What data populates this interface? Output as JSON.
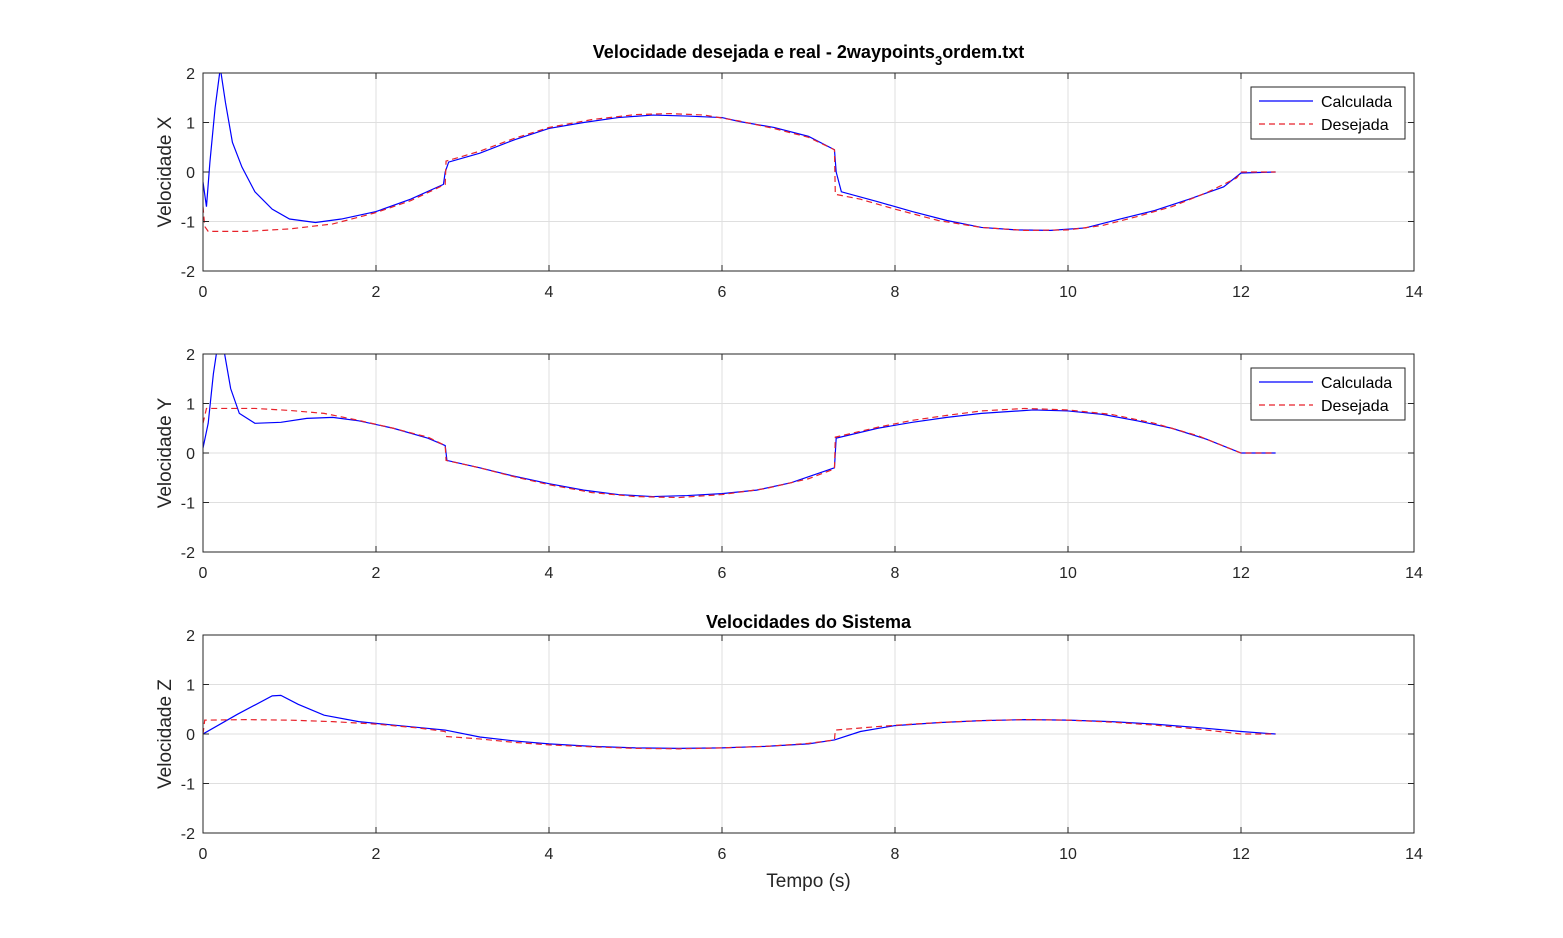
{
  "chart_data": [
    {
      "type": "line",
      "title_main": "Velocidade desejada e real - 2waypoints",
      "title_subscript": "3",
      "title_suffix": "ordem.txt",
      "ylabel": "Velocidade X",
      "xlabel": "",
      "xlim": [
        0,
        14
      ],
      "ylim": [
        -2,
        2
      ],
      "xticks": [
        "0",
        "2",
        "4",
        "6",
        "8",
        "10",
        "12",
        "14"
      ],
      "yticks": [
        "2",
        "1",
        "0",
        "-1",
        "-2"
      ],
      "grid": true,
      "legend_position": "top-right",
      "series": [
        {
          "name": "Calculada",
          "color": "#0000ff",
          "style": "solid",
          "points": [
            [
              0,
              -0.2
            ],
            [
              0.04,
              -0.7
            ],
            [
              0.08,
              0.2
            ],
            [
              0.14,
              1.3
            ],
            [
              0.2,
              2.1
            ],
            [
              0.26,
              1.4
            ],
            [
              0.34,
              0.6
            ],
            [
              0.45,
              0.1
            ],
            [
              0.6,
              -0.4
            ],
            [
              0.8,
              -0.75
            ],
            [
              1.0,
              -0.95
            ],
            [
              1.3,
              -1.02
            ],
            [
              1.6,
              -0.95
            ],
            [
              2.0,
              -0.8
            ],
            [
              2.4,
              -0.55
            ],
            [
              2.78,
              -0.25
            ],
            [
              2.8,
              0.0
            ],
            [
              2.84,
              0.2
            ],
            [
              3.2,
              0.38
            ],
            [
              3.6,
              0.65
            ],
            [
              4.0,
              0.88
            ],
            [
              4.4,
              1.0
            ],
            [
              4.8,
              1.1
            ],
            [
              5.2,
              1.15
            ],
            [
              5.6,
              1.13
            ],
            [
              6.0,
              1.1
            ],
            [
              6.2,
              1.02
            ],
            [
              6.6,
              0.9
            ],
            [
              7.0,
              0.72
            ],
            [
              7.3,
              0.45
            ],
            [
              7.32,
              0.0
            ],
            [
              7.38,
              -0.4
            ],
            [
              7.8,
              -0.6
            ],
            [
              8.2,
              -0.8
            ],
            [
              8.6,
              -0.98
            ],
            [
              9.0,
              -1.12
            ],
            [
              9.4,
              -1.17
            ],
            [
              9.8,
              -1.18
            ],
            [
              10.2,
              -1.13
            ],
            [
              10.6,
              -0.95
            ],
            [
              11.0,
              -0.78
            ],
            [
              11.4,
              -0.55
            ],
            [
              11.8,
              -0.3
            ],
            [
              12.0,
              -0.02
            ],
            [
              12.4,
              0.0
            ]
          ]
        },
        {
          "name": "Desejada",
          "color": "#e8222a",
          "style": "dashed",
          "points": [
            [
              0,
              -0.7
            ],
            [
              0.02,
              -1.1
            ],
            [
              0.06,
              -1.2
            ],
            [
              0.5,
              -1.2
            ],
            [
              1.0,
              -1.15
            ],
            [
              1.5,
              -1.05
            ],
            [
              2.0,
              -0.82
            ],
            [
              2.4,
              -0.58
            ],
            [
              2.8,
              -0.25
            ],
            [
              2.81,
              0.22
            ],
            [
              3.2,
              0.42
            ],
            [
              3.6,
              0.68
            ],
            [
              4.0,
              0.9
            ],
            [
              4.5,
              1.06
            ],
            [
              5.0,
              1.16
            ],
            [
              5.4,
              1.18
            ],
            [
              5.8,
              1.15
            ],
            [
              6.2,
              1.03
            ],
            [
              6.6,
              0.88
            ],
            [
              7.0,
              0.7
            ],
            [
              7.3,
              0.45
            ],
            [
              7.31,
              -0.45
            ],
            [
              7.6,
              -0.55
            ],
            [
              8.0,
              -0.75
            ],
            [
              8.5,
              -0.98
            ],
            [
              9.0,
              -1.12
            ],
            [
              9.5,
              -1.18
            ],
            [
              10.0,
              -1.17
            ],
            [
              10.4,
              -1.08
            ],
            [
              10.8,
              -0.9
            ],
            [
              11.2,
              -0.7
            ],
            [
              11.6,
              -0.42
            ],
            [
              11.95,
              -0.12
            ],
            [
              12.0,
              0.0
            ],
            [
              12.4,
              0.0
            ]
          ]
        }
      ]
    },
    {
      "type": "line",
      "ylabel": "Velocidade Y",
      "xlabel": "",
      "xlim": [
        0,
        14
      ],
      "ylim": [
        -2,
        2
      ],
      "xticks": [
        "0",
        "2",
        "4",
        "6",
        "8",
        "10",
        "12",
        "14"
      ],
      "yticks": [
        "2",
        "1",
        "0",
        "-1",
        "-2"
      ],
      "grid": true,
      "legend_position": "top-right",
      "series": [
        {
          "name": "Calculada",
          "color": "#0000ff",
          "style": "solid",
          "points": [
            [
              0,
              0.1
            ],
            [
              0.06,
              0.6
            ],
            [
              0.12,
              1.6
            ],
            [
              0.18,
              2.3
            ],
            [
              0.24,
              2.1
            ],
            [
              0.32,
              1.3
            ],
            [
              0.42,
              0.8
            ],
            [
              0.6,
              0.6
            ],
            [
              0.9,
              0.62
            ],
            [
              1.2,
              0.7
            ],
            [
              1.5,
              0.72
            ],
            [
              1.8,
              0.65
            ],
            [
              2.2,
              0.5
            ],
            [
              2.6,
              0.3
            ],
            [
              2.8,
              0.15
            ],
            [
              2.82,
              -0.15
            ],
            [
              3.2,
              -0.3
            ],
            [
              3.6,
              -0.47
            ],
            [
              4.0,
              -0.62
            ],
            [
              4.4,
              -0.75
            ],
            [
              4.8,
              -0.84
            ],
            [
              5.2,
              -0.88
            ],
            [
              5.6,
              -0.86
            ],
            [
              6.0,
              -0.82
            ],
            [
              6.4,
              -0.75
            ],
            [
              6.8,
              -0.6
            ],
            [
              7.3,
              -0.3
            ],
            [
              7.32,
              0.3
            ],
            [
              7.8,
              0.5
            ],
            [
              8.2,
              0.62
            ],
            [
              8.6,
              0.72
            ],
            [
              9.0,
              0.8
            ],
            [
              9.6,
              0.87
            ],
            [
              10.0,
              0.85
            ],
            [
              10.4,
              0.78
            ],
            [
              10.8,
              0.65
            ],
            [
              11.2,
              0.5
            ],
            [
              11.6,
              0.28
            ],
            [
              12.0,
              0.0
            ],
            [
              12.4,
              0.0
            ]
          ]
        },
        {
          "name": "Desejada",
          "color": "#e8222a",
          "style": "dashed",
          "points": [
            [
              0,
              0.6
            ],
            [
              0.04,
              0.9
            ],
            [
              0.6,
              0.9
            ],
            [
              1.0,
              0.86
            ],
            [
              1.4,
              0.8
            ],
            [
              1.8,
              0.66
            ],
            [
              2.2,
              0.5
            ],
            [
              2.6,
              0.32
            ],
            [
              2.8,
              0.15
            ],
            [
              2.81,
              -0.15
            ],
            [
              3.2,
              -0.3
            ],
            [
              3.6,
              -0.48
            ],
            [
              4.0,
              -0.64
            ],
            [
              4.5,
              -0.8
            ],
            [
              5.0,
              -0.88
            ],
            [
              5.5,
              -0.9
            ],
            [
              6.0,
              -0.84
            ],
            [
              6.5,
              -0.72
            ],
            [
              7.0,
              -0.52
            ],
            [
              7.3,
              -0.32
            ],
            [
              7.31,
              0.32
            ],
            [
              7.8,
              0.52
            ],
            [
              8.2,
              0.66
            ],
            [
              8.6,
              0.76
            ],
            [
              9.0,
              0.85
            ],
            [
              9.5,
              0.9
            ],
            [
              10.0,
              0.87
            ],
            [
              10.5,
              0.78
            ],
            [
              11.0,
              0.6
            ],
            [
              11.5,
              0.35
            ],
            [
              12.0,
              0.0
            ],
            [
              12.4,
              0.0
            ]
          ]
        }
      ]
    },
    {
      "type": "line",
      "title": "Velocidades do Sistema",
      "ylabel": "Velocidade Z",
      "xlabel": "Tempo (s)",
      "xlim": [
        0,
        14
      ],
      "ylim": [
        -2,
        2
      ],
      "xticks": [
        "0",
        "2",
        "4",
        "6",
        "8",
        "10",
        "12",
        "14"
      ],
      "yticks": [
        "2",
        "1",
        "0",
        "-1",
        "-2"
      ],
      "grid": true,
      "series": [
        {
          "name": "Calculada",
          "color": "#0000ff",
          "style": "solid",
          "points": [
            [
              0,
              0.0
            ],
            [
              0.4,
              0.4
            ],
            [
              0.8,
              0.77
            ],
            [
              0.9,
              0.78
            ],
            [
              1.1,
              0.6
            ],
            [
              1.4,
              0.38
            ],
            [
              1.8,
              0.25
            ],
            [
              2.2,
              0.18
            ],
            [
              2.8,
              0.08
            ],
            [
              3.2,
              -0.06
            ],
            [
              3.6,
              -0.14
            ],
            [
              4.0,
              -0.2
            ],
            [
              4.5,
              -0.25
            ],
            [
              5.0,
              -0.28
            ],
            [
              5.5,
              -0.29
            ],
            [
              6.0,
              -0.28
            ],
            [
              6.5,
              -0.25
            ],
            [
              7.0,
              -0.2
            ],
            [
              7.3,
              -0.12
            ],
            [
              7.6,
              0.05
            ],
            [
              8.0,
              0.17
            ],
            [
              8.5,
              0.23
            ],
            [
              9.0,
              0.27
            ],
            [
              9.5,
              0.29
            ],
            [
              10.0,
              0.28
            ],
            [
              10.5,
              0.25
            ],
            [
              11.0,
              0.2
            ],
            [
              11.5,
              0.13
            ],
            [
              12.0,
              0.05
            ],
            [
              12.4,
              0.0
            ]
          ]
        },
        {
          "name": "Desejada",
          "color": "#e8222a",
          "style": "dashed",
          "points": [
            [
              0,
              0.0
            ],
            [
              0.02,
              0.28
            ],
            [
              0.5,
              0.29
            ],
            [
              1.0,
              0.28
            ],
            [
              1.5,
              0.25
            ],
            [
              2.0,
              0.2
            ],
            [
              2.5,
              0.12
            ],
            [
              2.8,
              0.05
            ],
            [
              2.81,
              -0.05
            ],
            [
              3.2,
              -0.1
            ],
            [
              3.6,
              -0.17
            ],
            [
              4.0,
              -0.22
            ],
            [
              4.5,
              -0.26
            ],
            [
              5.0,
              -0.29
            ],
            [
              5.5,
              -0.3
            ],
            [
              6.0,
              -0.28
            ],
            [
              6.5,
              -0.25
            ],
            [
              7.0,
              -0.19
            ],
            [
              7.3,
              -0.12
            ],
            [
              7.31,
              0.08
            ],
            [
              7.8,
              0.15
            ],
            [
              8.2,
              0.2
            ],
            [
              8.6,
              0.24
            ],
            [
              9.0,
              0.27
            ],
            [
              9.5,
              0.29
            ],
            [
              10.0,
              0.28
            ],
            [
              10.5,
              0.24
            ],
            [
              11.0,
              0.18
            ],
            [
              11.5,
              0.1
            ],
            [
              12.0,
              0.0
            ],
            [
              12.4,
              0.0
            ]
          ]
        }
      ]
    }
  ]
}
